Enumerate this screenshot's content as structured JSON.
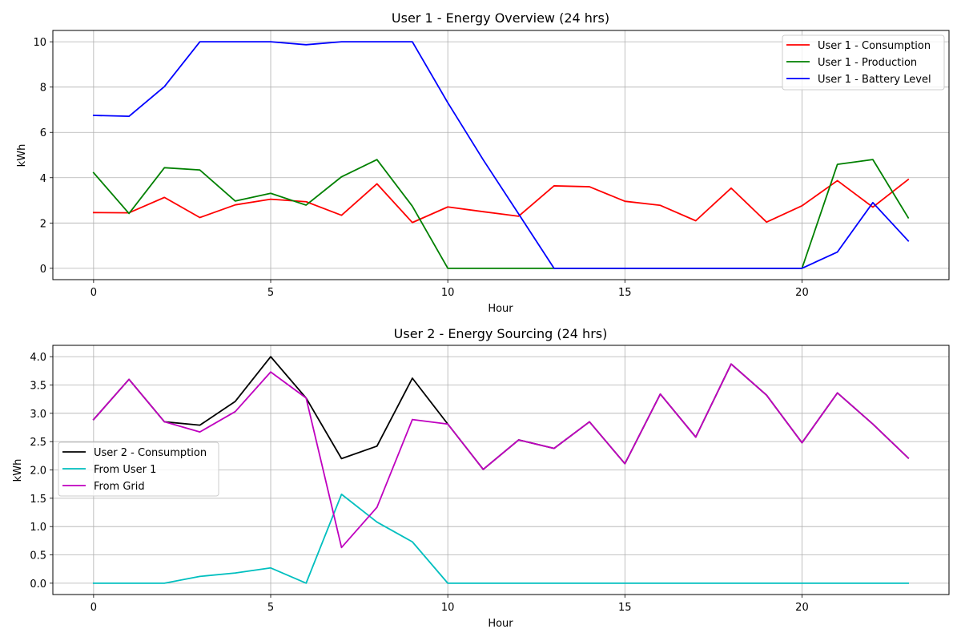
{
  "chart_data": [
    {
      "type": "line",
      "title": "User 1 - Energy Overview (24 hrs)",
      "xlabel": "Hour",
      "ylabel": "kWh",
      "x": [
        0,
        1,
        2,
        3,
        4,
        5,
        6,
        7,
        8,
        9,
        10,
        11,
        12,
        13,
        14,
        15,
        16,
        17,
        18,
        19,
        20,
        21,
        22,
        23
      ],
      "xlim": [
        -1.15,
        24.15
      ],
      "ylim": [
        -0.5,
        10.5
      ],
      "xticks": [
        0,
        5,
        10,
        15,
        20
      ],
      "yticks": [
        0,
        2,
        4,
        6,
        8,
        10
      ],
      "grid": true,
      "legend_position": "top-right",
      "series": [
        {
          "name": "User 1 - Consumption",
          "color": "#ff0000",
          "values": [
            2.46,
            2.45,
            3.13,
            2.24,
            2.8,
            3.05,
            2.94,
            2.34,
            3.73,
            2.02,
            2.71,
            2.5,
            2.3,
            3.64,
            3.6,
            2.96,
            2.78,
            2.1,
            3.54,
            2.04,
            2.76,
            3.87,
            2.7,
            3.92
          ]
        },
        {
          "name": "User 1 - Production",
          "color": "#008000",
          "values": [
            4.22,
            2.42,
            4.44,
            4.34,
            2.97,
            3.31,
            2.79,
            4.04,
            4.8,
            2.74,
            0,
            0,
            0,
            0,
            0,
            0,
            0,
            0,
            0,
            0,
            0,
            4.59,
            4.8,
            2.23
          ]
        },
        {
          "name": "User 1 - Battery Level",
          "color": "#0000ff",
          "values": [
            6.75,
            6.71,
            8.02,
            10,
            10,
            10,
            9.87,
            10,
            10,
            10,
            7.31,
            4.79,
            2.4,
            0,
            0,
            0,
            0,
            0,
            0,
            0,
            0,
            0.72,
            2.9,
            1.21
          ]
        }
      ]
    },
    {
      "type": "line",
      "title": "User 2 - Energy Sourcing (24 hrs)",
      "xlabel": "Hour",
      "ylabel": "kWh",
      "x": [
        0,
        1,
        2,
        3,
        4,
        5,
        6,
        7,
        8,
        9,
        10,
        11,
        12,
        13,
        14,
        15,
        16,
        17,
        18,
        19,
        20,
        21,
        22,
        23
      ],
      "xlim": [
        -1.15,
        24.15
      ],
      "ylim": [
        -0.2,
        4.2
      ],
      "xticks": [
        0,
        5,
        10,
        15,
        20
      ],
      "yticks": [
        0.0,
        0.5,
        1.0,
        1.5,
        2.0,
        2.5,
        3.0,
        3.5,
        4.0
      ],
      "grid": true,
      "legend_position": "center-left",
      "series": [
        {
          "name": "User 2 - Consumption",
          "color": "#000000",
          "values": [
            2.89,
            3.6,
            2.85,
            2.79,
            3.21,
            4.0,
            3.27,
            2.2,
            2.42,
            3.62,
            2.81,
            2.01,
            2.53,
            2.38,
            2.85,
            2.11,
            3.34,
            2.58,
            3.87,
            3.32,
            2.48,
            3.36,
            2.81,
            2.21
          ]
        },
        {
          "name": "From User 1",
          "color": "#00bfbf",
          "values": [
            0,
            0,
            0,
            0.12,
            0.18,
            0.27,
            0,
            1.57,
            1.08,
            0.73,
            0,
            0,
            0,
            0,
            0,
            0,
            0,
            0,
            0,
            0,
            0,
            0,
            0,
            0
          ]
        },
        {
          "name": "From Grid",
          "color": "#bf00bf",
          "values": [
            2.89,
            3.6,
            2.85,
            2.67,
            3.03,
            3.73,
            3.27,
            0.63,
            1.34,
            2.89,
            2.81,
            2.01,
            2.53,
            2.38,
            2.85,
            2.11,
            3.34,
            2.58,
            3.87,
            3.32,
            2.48,
            3.36,
            2.81,
            2.21
          ]
        }
      ]
    }
  ]
}
